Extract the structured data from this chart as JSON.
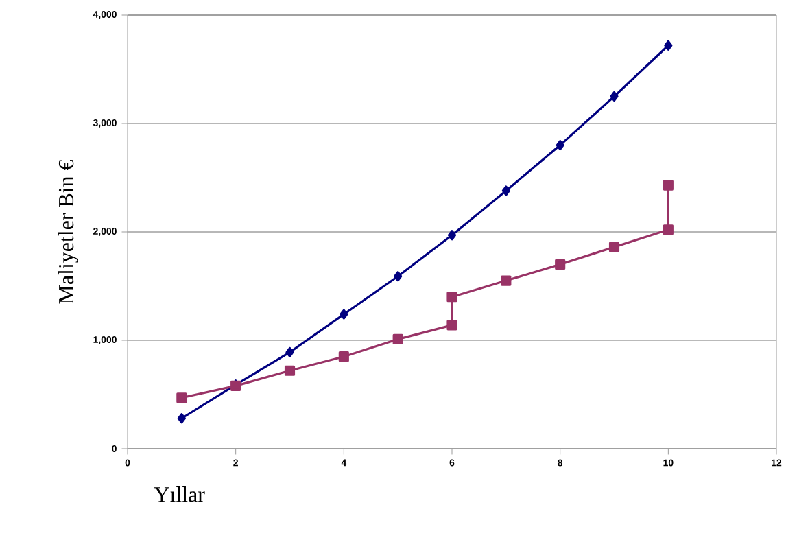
{
  "chart_data": {
    "type": "line",
    "xlabel": "Yıllar",
    "ylabel": "Maliyetler Bin €",
    "xlim": [
      0,
      12
    ],
    "xticks": [
      0,
      2,
      4,
      6,
      8,
      10,
      12
    ],
    "ylim": [
      0,
      4000
    ],
    "yticks": [
      {
        "value": 0,
        "label": "0"
      },
      {
        "value": 1000,
        "label": "1,000"
      },
      {
        "value": 2000,
        "label": "2,000"
      },
      {
        "value": 3000,
        "label": "3,000"
      },
      {
        "value": 4000,
        "label": "4,000"
      }
    ],
    "grid": "y",
    "series": [
      {
        "color": "#000080",
        "marker": "diamond",
        "x": [
          1,
          2,
          3,
          4,
          5,
          6,
          7,
          8,
          9,
          10
        ],
        "values": [
          280,
          590,
          890,
          1240,
          1590,
          1970,
          2380,
          2800,
          3250,
          3720
        ]
      },
      {
        "color": "#993366",
        "marker": "square",
        "x": [
          1,
          2,
          3,
          4,
          5,
          6,
          6,
          7,
          8,
          9,
          10,
          10
        ],
        "values": [
          470,
          580,
          720,
          850,
          1010,
          1140,
          1400,
          1550,
          1700,
          1860,
          2020,
          2430
        ]
      }
    ]
  }
}
